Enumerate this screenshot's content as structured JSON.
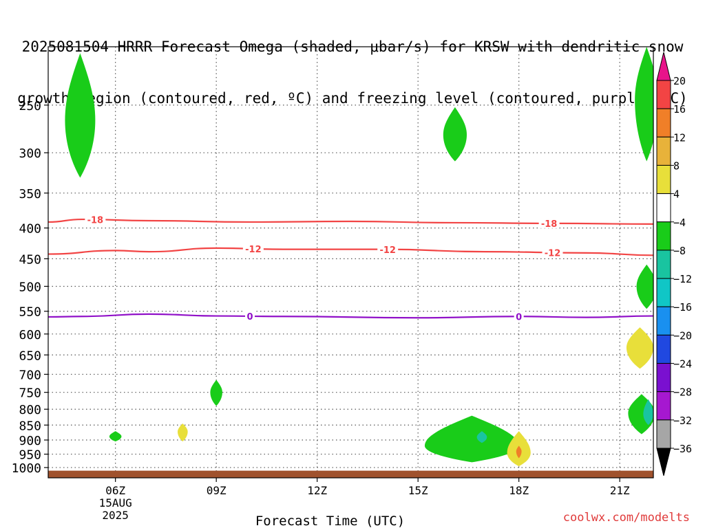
{
  "title_lines": [
    "2025081504 HRRR Forecast Omega (shaded, μbar/s) for KRSW with dendritic snow",
    "growth region (contoured, red, ºC) and freezing level (contoured, purple, ºC)"
  ],
  "credit": "coolwx.com/modelts",
  "chart_data": {
    "type": "time-height cross section",
    "xlabel": "Forecast Time (UTC)",
    "x_date_label": [
      "15AUG",
      "2025"
    ],
    "x_ticks": [
      "06Z",
      "09Z",
      "12Z",
      "15Z",
      "18Z",
      "21Z"
    ],
    "x_tick_hours": [
      6,
      9,
      12,
      15,
      18,
      21
    ],
    "xlim_hours": [
      4,
      22
    ],
    "y_ticks": [
      250,
      300,
      350,
      400,
      450,
      500,
      550,
      600,
      650,
      700,
      750,
      800,
      850,
      900,
      950,
      1000
    ],
    "y_unit": "hPa",
    "ylim": [
      200,
      1040
    ],
    "y_scale": "log",
    "grid": true,
    "colorbar": {
      "levels": [
        "20",
        "16",
        "12",
        "8",
        "4",
        "−4",
        "−8",
        "−12",
        "−16",
        "−20",
        "−24",
        "−28",
        "−32",
        "−36"
      ],
      "level_values": [
        20,
        16,
        12,
        8,
        4,
        -4,
        -8,
        -12,
        -16,
        -20,
        -24,
        -28,
        -32,
        -36
      ],
      "colors": [
        "#e8138a",
        "#f24444",
        "#f07f28",
        "#e8b23a",
        "#e8df3a",
        "#ffffff",
        "#19cc19",
        "#19c4a0",
        "#10c6c6",
        "#1990f0",
        "#2048e0",
        "#7a10d0",
        "#a618d0",
        "#a6a6a6",
        "#000000"
      ]
    },
    "contours": [
      {
        "name": "-18",
        "color": "#f24444",
        "label_hours": [
          5.4,
          18.9
        ],
        "points": [
          [
            4,
            391
          ],
          [
            5,
            387
          ],
          [
            7,
            389
          ],
          [
            10,
            391
          ],
          [
            13,
            390
          ],
          [
            16,
            392
          ],
          [
            19,
            393
          ],
          [
            22,
            394
          ]
        ]
      },
      {
        "name": "-12",
        "color": "#f24444",
        "label_hours": [
          10.1,
          14.1,
          19.0
        ],
        "points": [
          [
            4,
            442
          ],
          [
            6,
            436
          ],
          [
            7,
            438
          ],
          [
            9,
            432
          ],
          [
            11,
            434
          ],
          [
            14,
            434
          ],
          [
            17,
            438
          ],
          [
            20,
            440
          ],
          [
            22,
            444
          ]
        ]
      },
      {
        "name": "0",
        "color": "#9010c8",
        "label_hours": [
          10.0,
          18.0
        ],
        "points": [
          [
            4,
            562
          ],
          [
            5,
            561
          ],
          [
            7,
            556
          ],
          [
            9,
            560
          ],
          [
            11,
            561
          ],
          [
            15,
            564
          ],
          [
            18,
            561
          ],
          [
            20,
            563
          ],
          [
            22,
            560
          ]
        ]
      }
    ],
    "omega_regions": [
      {
        "color": "#19cc19",
        "center": [
          4.95,
          265
        ],
        "half_width_hours": 0.45,
        "p_range": [
          205,
          330
        ]
      },
      {
        "color": "#19cc19",
        "center": [
          16.1,
          280
        ],
        "half_width_hours": 0.35,
        "p_range": [
          252,
          310
        ]
      },
      {
        "color": "#19cc19",
        "center": [
          6.0,
          888
        ],
        "half_width_hours": 0.18,
        "p_range": [
          870,
          905
        ]
      },
      {
        "color": "#e8df3a",
        "center": [
          8.0,
          872
        ],
        "half_width_hours": 0.15,
        "p_range": [
          845,
          905
        ]
      },
      {
        "color": "#19cc19",
        "center": [
          9.0,
          750
        ],
        "half_width_hours": 0.18,
        "p_range": [
          715,
          790
        ]
      },
      {
        "color": "#19cc19",
        "center": [
          16.6,
          920
        ],
        "half_width_hours": 1.4,
        "p_range": [
          820,
          980
        ]
      },
      {
        "color": "#19c4a0",
        "center": [
          16.9,
          890
        ],
        "half_width_hours": 0.15,
        "p_range": [
          870,
          910
        ]
      },
      {
        "color": "#e8df3a",
        "center": [
          18.0,
          945
        ],
        "half_width_hours": 0.35,
        "p_range": [
          870,
          995
        ]
      },
      {
        "color": "#f07f28",
        "center": [
          18.0,
          940
        ],
        "half_width_hours": 0.08,
        "p_range": [
          920,
          965
        ]
      },
      {
        "color": "#19cc19",
        "center": [
          21.8,
          245
        ],
        "half_width_hours": 0.35,
        "p_range": [
          200,
          310
        ]
      },
      {
        "color": "#19cc19",
        "center": [
          21.8,
          500
        ],
        "half_width_hours": 0.3,
        "p_range": [
          460,
          545
        ]
      },
      {
        "color": "#e8df3a",
        "center": [
          21.6,
          632
        ],
        "half_width_hours": 0.4,
        "p_range": [
          585,
          685
        ]
      },
      {
        "color": "#19cc19",
        "center": [
          21.65,
          812
        ],
        "half_width_hours": 0.4,
        "p_range": [
          755,
          880
        ]
      },
      {
        "color": "#19c4a0",
        "center": [
          21.85,
          815
        ],
        "half_width_hours": 0.15,
        "p_range": [
          770,
          850
        ]
      }
    ],
    "surface_color": "#a0522d"
  }
}
